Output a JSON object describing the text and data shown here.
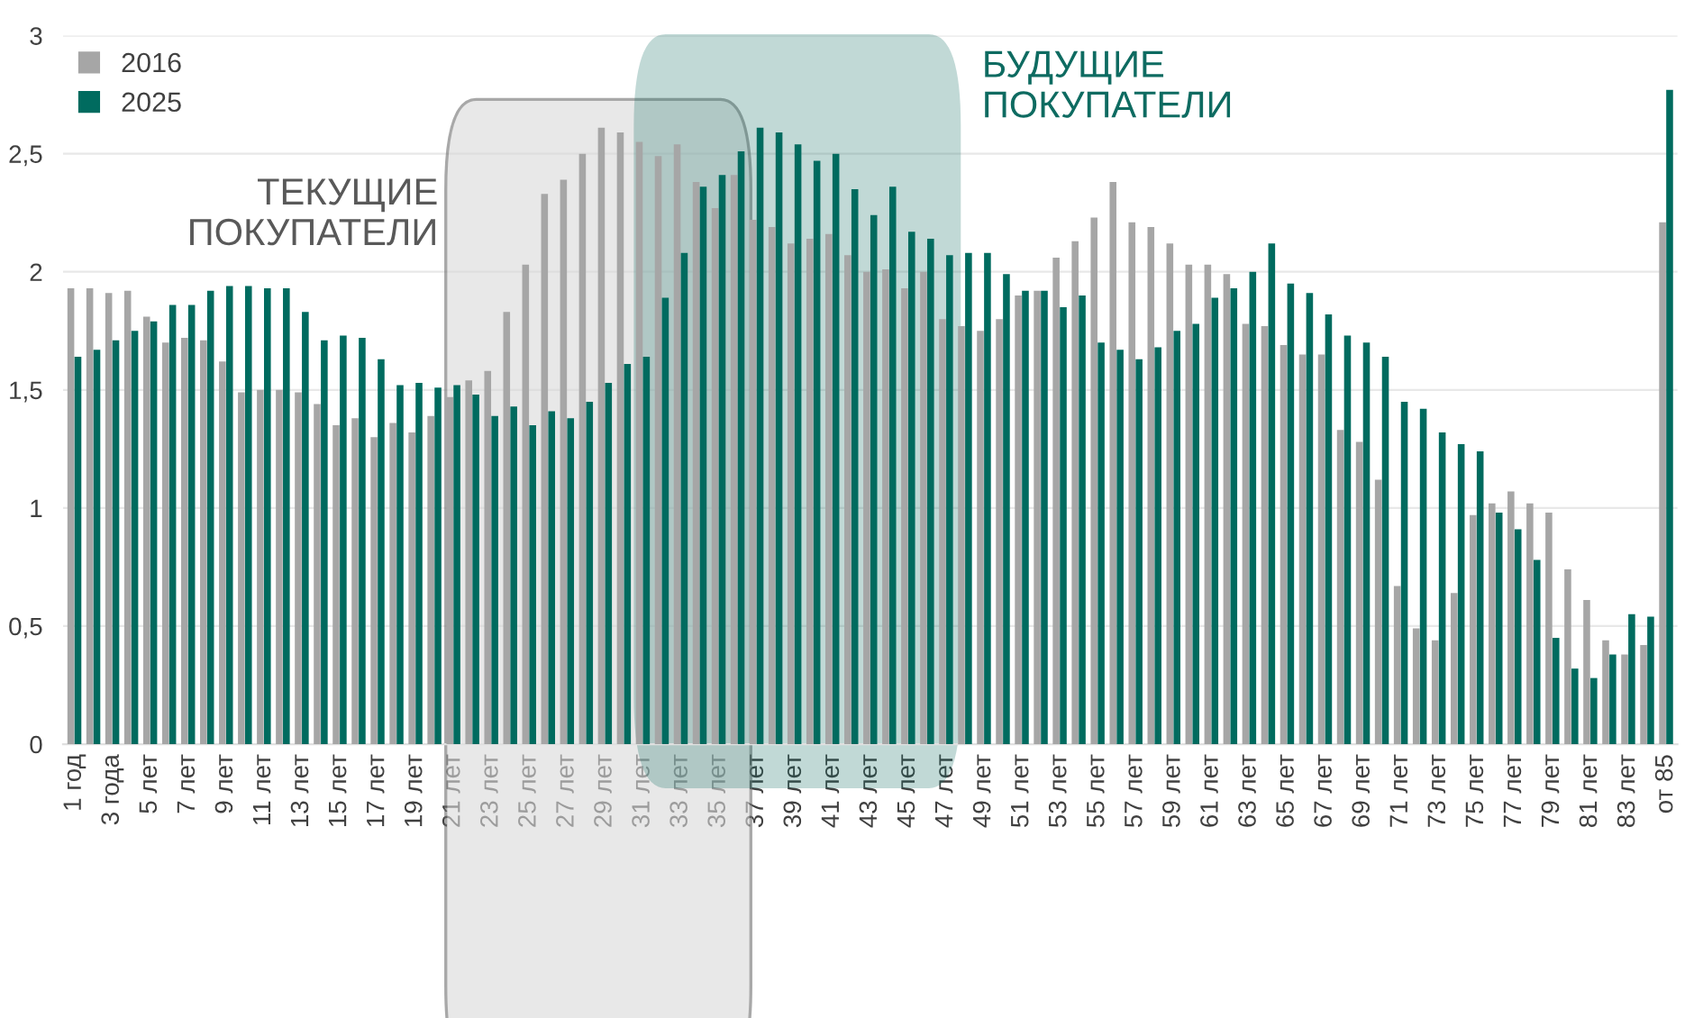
{
  "chart_data": {
    "type": "bar",
    "categories": [
      "1 год",
      null,
      "3 года",
      null,
      "5 лет",
      null,
      "7 лет",
      null,
      "9 лет",
      null,
      "11 лет",
      null,
      "13 лет",
      null,
      "15 лет",
      null,
      "17 лет",
      null,
      "19 лет",
      null,
      "21 лет",
      null,
      "23 лет",
      null,
      "25 лет",
      null,
      "27 лет",
      null,
      "29 лет",
      null,
      "31 лет",
      null,
      "33 лет",
      null,
      "35 лет",
      null,
      "37 лет",
      null,
      "39 лет",
      null,
      "41 лет",
      null,
      "43 лет",
      null,
      "45 лет",
      null,
      "47 лет",
      null,
      "49 лет",
      null,
      "51 лет",
      null,
      "53 лет",
      null,
      "55 лет",
      null,
      "57 лет",
      null,
      "59 лет",
      null,
      "61 лет",
      null,
      "63 лет",
      null,
      "65 лет",
      null,
      "67 лет",
      null,
      "69 лет",
      null,
      "71 лет",
      null,
      "73 лет",
      null,
      "75 лет",
      null,
      "77 лет",
      null,
      "79 лет",
      null,
      "81 лет",
      null,
      "83 лет",
      null,
      "от 85"
    ],
    "series": [
      {
        "name": "2016",
        "color": "#a6a6a6",
        "values": [
          1.93,
          1.93,
          1.91,
          1.92,
          1.81,
          1.7,
          1.72,
          1.71,
          1.62,
          1.49,
          1.5,
          1.5,
          1.49,
          1.44,
          1.35,
          1.38,
          1.3,
          1.36,
          1.32,
          1.39,
          1.47,
          1.54,
          1.58,
          1.83,
          2.03,
          2.33,
          2.39,
          2.5,
          2.61,
          2.59,
          2.55,
          2.49,
          2.54,
          2.38,
          2.27,
          2.41,
          2.22,
          2.19,
          2.12,
          2.14,
          2.16,
          2.07,
          2.0,
          2.01,
          1.93,
          2.0,
          1.8,
          1.77,
          1.75,
          1.8,
          1.9,
          1.92,
          2.06,
          2.13,
          2.23,
          2.38,
          2.21,
          2.19,
          2.12,
          2.03,
          2.03,
          1.99,
          1.78,
          1.77,
          1.69,
          1.65,
          1.65,
          1.33,
          1.28,
          1.12,
          0.67,
          0.49,
          0.44,
          0.64,
          0.97,
          1.02,
          1.07,
          1.02,
          0.98,
          0.74,
          0.61,
          0.44,
          0.38,
          0.42,
          2.21
        ]
      },
      {
        "name": "2025",
        "color": "#006b5f",
        "values": [
          1.64,
          1.67,
          1.71,
          1.75,
          1.79,
          1.86,
          1.86,
          1.92,
          1.94,
          1.94,
          1.93,
          1.93,
          1.83,
          1.71,
          1.73,
          1.72,
          1.63,
          1.52,
          1.53,
          1.51,
          1.52,
          1.48,
          1.39,
          1.43,
          1.35,
          1.41,
          1.38,
          1.45,
          1.53,
          1.61,
          1.64,
          1.89,
          2.08,
          2.36,
          2.41,
          2.51,
          2.61,
          2.59,
          2.54,
          2.47,
          2.5,
          2.35,
          2.24,
          2.36,
          2.17,
          2.14,
          2.07,
          2.08,
          2.08,
          1.99,
          1.92,
          1.92,
          1.85,
          1.9,
          1.7,
          1.67,
          1.63,
          1.68,
          1.75,
          1.78,
          1.89,
          1.93,
          2.0,
          2.12,
          1.95,
          1.91,
          1.82,
          1.73,
          1.7,
          1.64,
          1.45,
          1.42,
          1.32,
          1.27,
          1.24,
          0.98,
          0.91,
          0.78,
          0.45,
          0.32,
          0.28,
          0.38,
          0.55,
          0.54,
          2.77
        ]
      }
    ],
    "ylim": [
      0,
      3
    ],
    "yticks": [
      0,
      {
        "value": 0.5,
        "label": "0,5"
      },
      1,
      {
        "value": 1.5,
        "label": "1,5"
      },
      2,
      {
        "value": 2.5,
        "label": "2,5"
      },
      3
    ],
    "grid": "y",
    "legend": "top left",
    "annotations": [
      "ТЕКУЩИЕ\nПОКУПАТЕЛИ",
      "БУДУЩИЕ\nПОКУПАТЕЛИ"
    ]
  }
}
